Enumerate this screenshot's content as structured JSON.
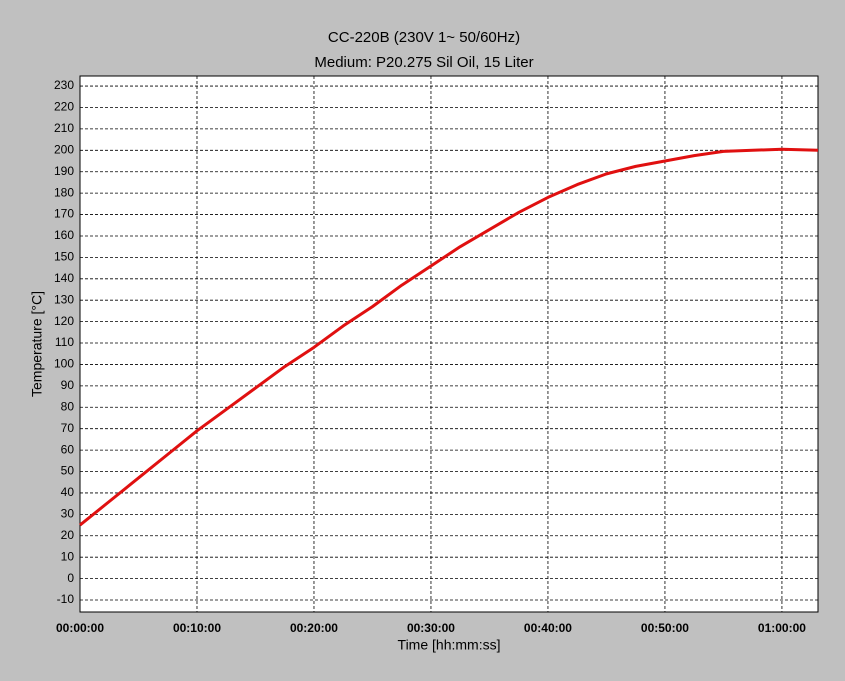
{
  "chart_data": {
    "type": "line",
    "title": "CC-220B (230V 1~ 50/60Hz)",
    "subtitle": "Medium: P20.275 Sil Oil, 15 Liter",
    "x_label": "Time [hh:mm:ss]",
    "y_label": "Temperature [°C]",
    "x": [
      0,
      150,
      300,
      450,
      600,
      750,
      900,
      1050,
      1200,
      1350,
      1500,
      1650,
      1800,
      1950,
      2100,
      2250,
      2400,
      2550,
      2700,
      2850,
      3000,
      3150,
      3300,
      3450,
      3600,
      3785
    ],
    "series": [
      {
        "name": "Temperature",
        "color": "#e01010",
        "values": [
          25,
          36,
          47,
          58,
          69,
          79,
          89,
          99,
          108,
          118,
          127,
          137,
          146,
          155,
          163,
          171,
          178,
          184,
          189,
          192.5,
          195,
          197.5,
          199.5,
          200,
          200.5,
          200
        ]
      }
    ],
    "xlim": [
      0,
      3785
    ],
    "xticks": [
      {
        "value": 0,
        "label": "00:00:00"
      },
      {
        "value": 600,
        "label": "00:10:00"
      },
      {
        "value": 1200,
        "label": "00:20:00"
      },
      {
        "value": 1800,
        "label": "00:30:00"
      },
      {
        "value": 2400,
        "label": "00:40:00"
      },
      {
        "value": 3000,
        "label": "00:50:00"
      },
      {
        "value": 3600,
        "label": "01:00:00"
      }
    ],
    "ylim": [
      -15.6,
      234.7
    ],
    "yticks": [
      -10,
      0,
      10,
      20,
      30,
      40,
      50,
      60,
      70,
      80,
      90,
      100,
      110,
      120,
      130,
      140,
      150,
      160,
      170,
      180,
      190,
      200,
      210,
      220,
      230
    ],
    "grid": true
  }
}
